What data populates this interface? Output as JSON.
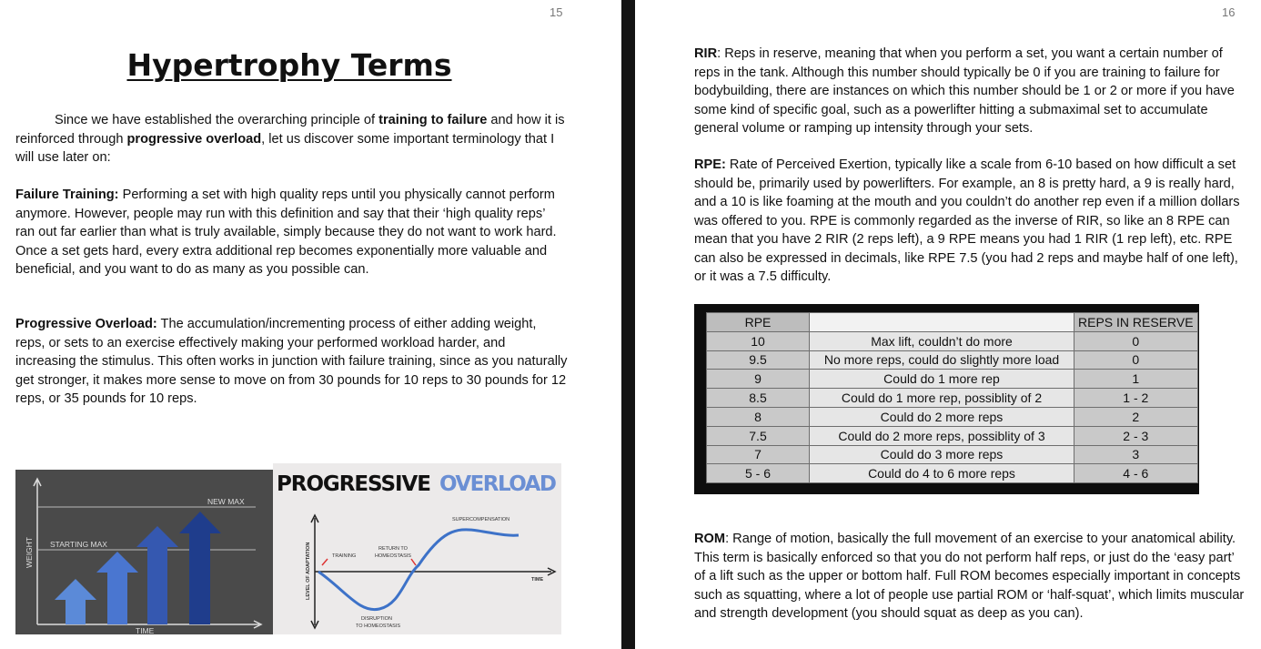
{
  "left_page": {
    "page_number": "15",
    "title": "Hypertrophy Terms",
    "intro": {
      "t1": "Since we have established the overarching principle of ",
      "b1": "training to failure",
      "t2": " and how it is reinforced through ",
      "b2": "progressive overload",
      "t3": ", let us discover some important terminology that I will use later on:"
    },
    "failure_training": {
      "term": "Failure Training:",
      "text": " Performing a set with high quality reps until you physically cannot perform anymore. However, people may run with this definition and say that their ‘high quality reps’ ran out far earlier than what is truly available, simply because they do not want to work hard. Once a set gets hard, every extra additional rep becomes exponentially more valuable and beneficial, and you want to do as many as you possible can."
    },
    "progressive_overload": {
      "term": "Progressive Overload:",
      "text": " The accumulation/incrementing process of either adding weight, reps, or sets to an exercise effectively making your performed workload harder, and increasing the stimulus. This often works in junction with failure training, since as you naturally get stronger, it makes more sense to move on from 30 pounds for 10 reps to 30 pounds for 12 reps, or 35 pounds for 10 reps."
    },
    "bar_figure": {
      "new_max": "NEW MAX",
      "starting_max": "STARTING MAX",
      "y_label": "WEIGHT",
      "x_label": "TIME"
    },
    "curve_figure": {
      "title_1": "PROGRESSIVE",
      "title_2": "OVERLOAD",
      "supercompensation": "SUPERCOMPENSATION",
      "return_1": "RETURN TO",
      "return_2": "HOMEOSTASIS",
      "training": "TRAINING",
      "time": "TIME",
      "y_label": "LEVEL OF ADAPTATION",
      "disruption_1": "DISRUPTION",
      "disruption_2": "TO HOMEOSTASIS"
    },
    "colors": {
      "bar_light": "#5b8ad8",
      "bar_mid": "#3f67c4",
      "bar_dark": "#1f3d8c",
      "overload_blue": "#6b8fd4"
    }
  },
  "right_page": {
    "page_number": "16",
    "rir": {
      "term": "RIR",
      "text": ": Reps in reserve, meaning that when you perform a set, you want a certain number of reps in the tank. Although this number should typically be 0 if you are training to failure for bodybuilding, there are instances on which this number should be 1 or 2 or more if you have some kind of specific goal, such as a powerlifter hitting a submaximal set to accumulate general volume or ramping up intensity through your sets."
    },
    "rpe": {
      "term": "RPE:",
      "text": " Rate of Perceived Exertion, typically like a scale from 6-10 based on how difficult a set should be, primarily used by powerlifters. For example, an 8 is pretty hard, a 9 is really hard, and a 10 is like foaming at the mouth and you couldn’t do another rep even if a million dollars was offered to you. RPE is commonly regarded as the inverse of RIR, so like an 8 RPE can mean that you have 2 RIR (2 reps left), a 9 RPE means you had 1 RIR (1 rep left), etc. RPE can also be expressed in decimals, like RPE 7.5 (you had 2 reps and maybe half of one left), or it was a 7.5 difficulty."
    },
    "table": {
      "headers": [
        "RPE",
        "",
        "REPS IN RESERVE"
      ],
      "rows": [
        [
          "10",
          "Max lift, couldn’t do more",
          "0"
        ],
        [
          "9.5",
          "No more reps, could do slightly more load",
          "0"
        ],
        [
          "9",
          "Could do 1 more rep",
          "1"
        ],
        [
          "8.5",
          "Could do 1 more rep, possiblity of 2",
          "1 - 2"
        ],
        [
          "8",
          "Could do 2 more reps",
          "2"
        ],
        [
          "7.5",
          "Could do 2 more reps, possiblity of 3",
          "2 - 3"
        ],
        [
          "7",
          "Could do 3 more reps",
          "3"
        ],
        [
          "5 - 6",
          "Could do 4 to 6 more reps",
          "4 - 6"
        ]
      ]
    },
    "rom": {
      "term": "ROM",
      "text": ": Range of motion, basically the full movement of an exercise to your anatomical ability. This term is basically enforced so that you do not perform half reps, or just do the ‘easy part’ of a lift such as the upper or bottom half. Full ROM becomes especially important in concepts such as squatting, where a lot of people use partial ROM or ‘half-squat’, which limits muscular and strength development (you should squat as deep as you can)."
    }
  }
}
